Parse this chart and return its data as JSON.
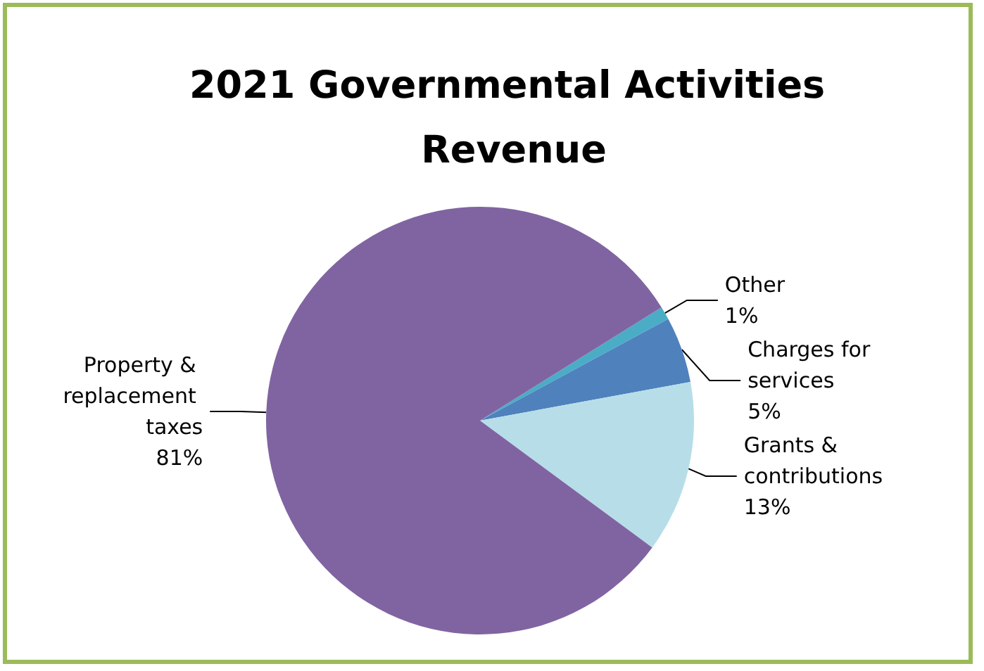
{
  "chart_data": {
    "type": "pie",
    "title": "2021 Governmental Activities Revenue",
    "categories": [
      "Other",
      "Charges for services",
      "Grants & contributions",
      "Property & replacement taxes"
    ],
    "values": [
      1,
      5,
      13,
      81
    ],
    "colors": [
      "#4bacc6",
      "#4f81bd",
      "#b7dee8",
      "#8064a2"
    ],
    "value_labels": [
      "1%",
      "5%",
      "13%",
      "81%"
    ],
    "legend": false
  }
}
